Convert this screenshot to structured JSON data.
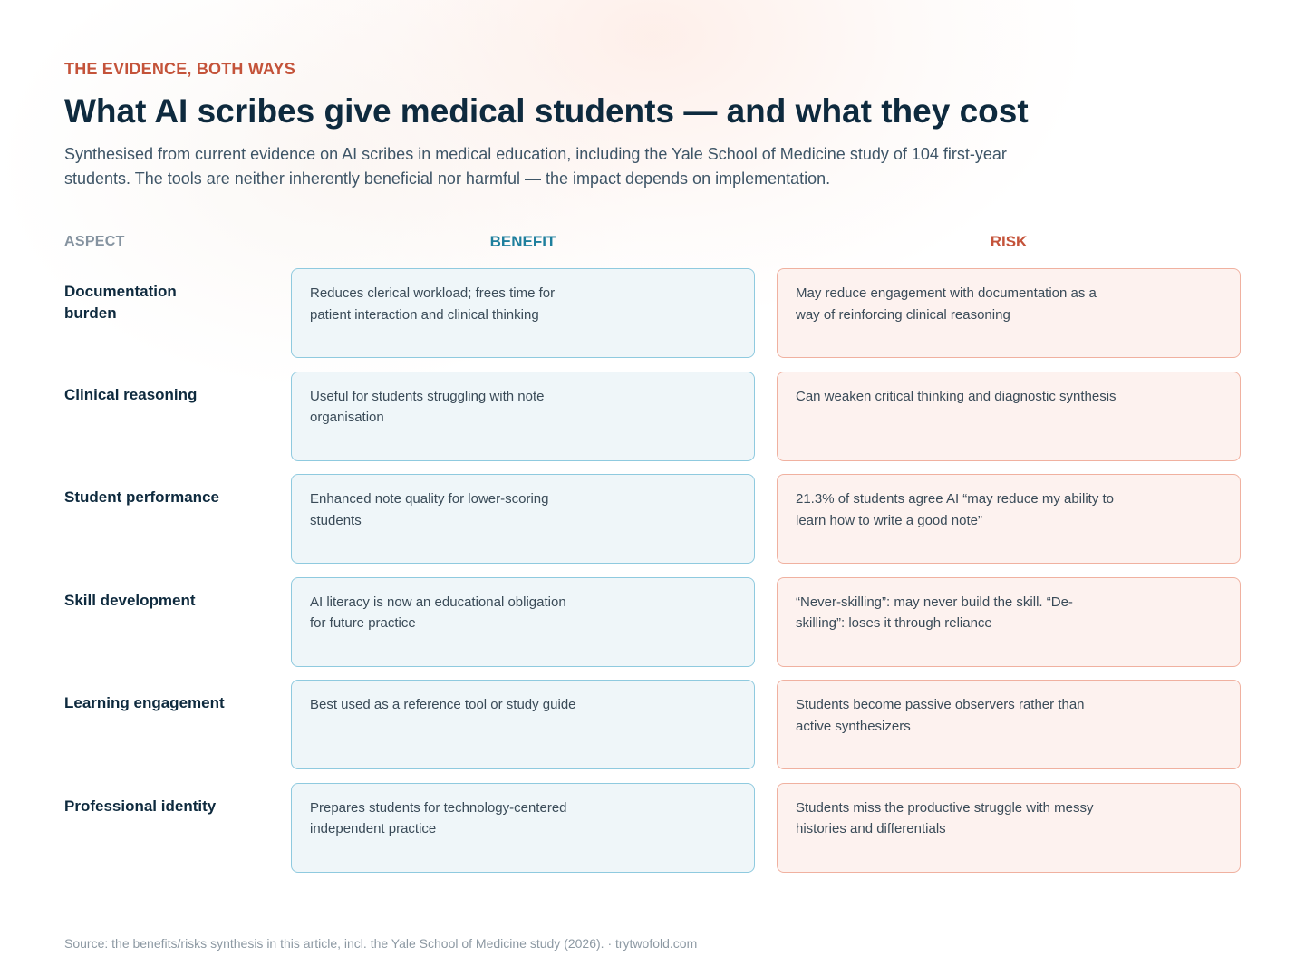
{
  "header": {
    "eyebrow": "THE EVIDENCE, BOTH WAYS",
    "title": "What AI scribes give medical students — and what they cost",
    "subtitle": "Synthesised from current evidence on AI scribes in medical education, including the Yale School of Medicine study of 104 first-year students. The tools are neither inherently beneficial nor harmful — the impact depends on implementation."
  },
  "columns": {
    "aspect": "ASPECT",
    "benefit": "BENEFIT",
    "risk": "RISK"
  },
  "colors": {
    "accent_red": "#c4533a",
    "accent_teal": "#1e7f9d",
    "benefit_bg": "#eff6f9",
    "benefit_border": "#8fcadf",
    "risk_bg": "#fdf2ef",
    "risk_border": "#f0b1a0"
  },
  "rows": [
    {
      "aspect": "Documentation burden",
      "benefit": "Reduces clerical workload; frees time for patient interaction and clinical thinking",
      "risk": "May reduce engagement with documentation as a way of reinforcing clinical reasoning"
    },
    {
      "aspect": "Clinical reasoning",
      "benefit": "Useful for students struggling with note organisation",
      "risk": "Can weaken critical thinking and diagnostic synthesis"
    },
    {
      "aspect": "Student performance",
      "benefit": "Enhanced note quality for lower-scoring students",
      "risk": "21.3% of students agree AI “may reduce my ability to learn how to write a good note”"
    },
    {
      "aspect": "Skill development",
      "benefit": "AI literacy is now an educational obligation for future practice",
      "risk": "“Never-skilling”: may never build the skill. “De-skilling”: loses it through reliance"
    },
    {
      "aspect": "Learning engagement",
      "benefit": "Best used as a reference tool or study guide",
      "risk": "Students become passive observers rather than active synthesizers"
    },
    {
      "aspect": "Professional identity",
      "benefit": "Prepares students for technology-centered independent practice",
      "risk": "Students miss the productive struggle with messy histories and differentials"
    }
  ],
  "footer": {
    "source": "Source: the benefits/risks synthesis in this article, incl. the Yale School of Medicine study (2026). · trytwofold.com"
  }
}
